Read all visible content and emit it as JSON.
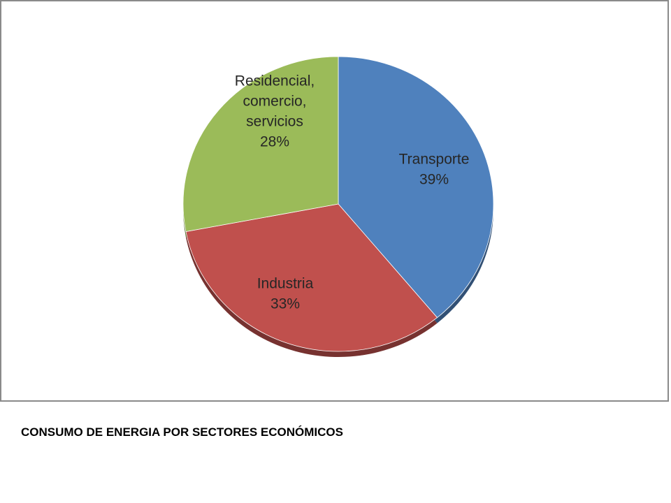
{
  "caption": "CONSUMO DE ENERGIA POR SECTORES ECONÓMICOS",
  "chart_data": {
    "type": "pie",
    "title": "",
    "slices": [
      {
        "label_lines": [
          "Transporte"
        ],
        "percent_label": "39%",
        "value": 39,
        "color": "#4f81bd"
      },
      {
        "label_lines": [
          "Industria"
        ],
        "percent_label": "33%",
        "value": 33,
        "color": "#c0504d"
      },
      {
        "label_lines": [
          "Residencial,",
          "comercio,",
          "servicios"
        ],
        "percent_label": "28%",
        "value": 28,
        "color": "#9bbb59"
      }
    ],
    "start_angle": "12 o'clock",
    "direction": "clockwise",
    "legend": "none",
    "style": "3d-tilted"
  }
}
